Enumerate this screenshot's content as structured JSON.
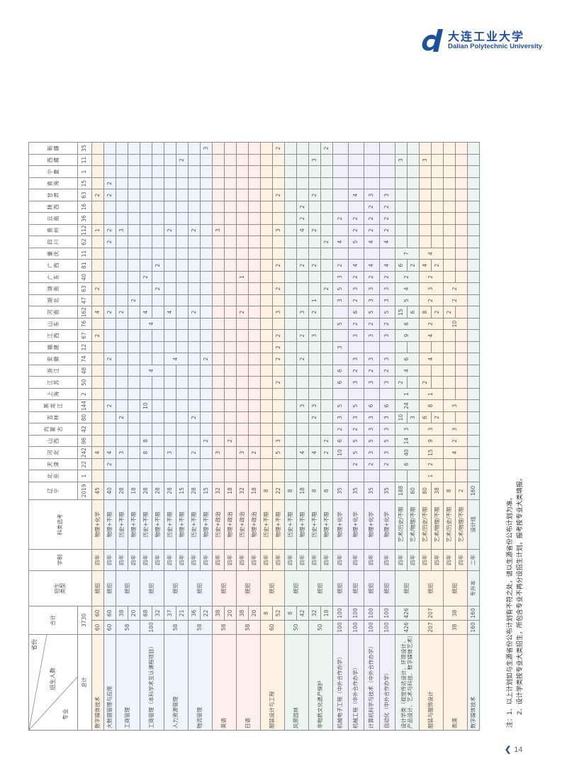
{
  "logo": {
    "cn": "大连工业大学",
    "en": "Dalian Polytechnic  University",
    "color": "#1d4fa3"
  },
  "table": {
    "header": {
      "province": "省份",
      "enroll": "招生人数",
      "major": "专业",
      "sum": "合计",
      "type": "招生类型",
      "duration": "学制",
      "subject": "科类选考",
      "total_label": "总计",
      "grand_total": "3730"
    },
    "provinces": [
      {
        "name": "辽宁",
        "total": "2019"
      },
      {
        "name": "北京",
        "total": "1"
      },
      {
        "name": "天津",
        "total": "22"
      },
      {
        "name": "河北",
        "total": "242"
      },
      {
        "name": "山西",
        "total": "96"
      },
      {
        "name": "内蒙古",
        "total": "42"
      },
      {
        "name": "吉林",
        "total": "80"
      },
      {
        "name": "黑龙江",
        "total": "144"
      },
      {
        "name": "上海",
        "total": "2"
      },
      {
        "name": "江苏",
        "total": "50"
      },
      {
        "name": "浙江",
        "total": "48"
      },
      {
        "name": "安徽",
        "total": "74"
      },
      {
        "name": "福建",
        "total": "12"
      },
      {
        "name": "江西",
        "total": "67"
      },
      {
        "name": "山东",
        "total": "76"
      },
      {
        "name": "河南",
        "total": "162"
      },
      {
        "name": "湖北",
        "total": "47"
      },
      {
        "name": "湖南",
        "total": "63"
      },
      {
        "name": "广东",
        "total": "40"
      },
      {
        "name": "广西",
        "total": "81"
      },
      {
        "name": "重庆",
        "total": "11"
      },
      {
        "name": "四川",
        "total": "62"
      },
      {
        "name": "贵州",
        "total": "112"
      },
      {
        "name": "云南",
        "total": "36"
      },
      {
        "name": "陕西",
        "total": "16"
      },
      {
        "name": "甘肃",
        "total": "63"
      },
      {
        "name": "青海",
        "total": "15"
      },
      {
        "name": "宁夏",
        "total": "1"
      },
      {
        "name": "西藏",
        "total": "11"
      },
      {
        "name": "新疆",
        "total": "35"
      }
    ],
    "majors": [
      {
        "name": "数字媒体技术",
        "total": "60",
        "type": "统招",
        "bg": "#fdf2e4",
        "subs": [
          {
            "count": "60",
            "dur": "四年",
            "subj": "物理+化学",
            "p": {
              "辽宁": "45",
              "河北": "4",
              "江西": "2",
              "河南": "4",
              "湖南": "2",
              "贵州": "1",
              "甘肃": "2"
            }
          }
        ]
      },
      {
        "name": "大数据管理与应用",
        "total": "60",
        "type": "统招",
        "bg": "#edf5fb",
        "subs": [
          {
            "count": "60",
            "dur": "四年",
            "subj": "物理+不限",
            "p": {
              "辽宁": "40",
              "天津": "2",
              "河北": "4",
              "黑龙江": "2",
              "安徽": "2",
              "河南": "2",
              "四川": "2",
              "贵州": "2",
              "甘肃": "2",
              "青海": "2"
            }
          }
        ]
      },
      {
        "name": "工商管理",
        "total": "58",
        "type": "统招",
        "bg": "#edf5fb",
        "subs": [
          {
            "count": "38",
            "dur": "四年",
            "subj": "历史+不限",
            "p": {
              "辽宁": "28",
              "河北": "3",
              "吉林": "2",
              "河南": "2",
              "贵州": "3"
            }
          },
          {
            "count": "20",
            "dur": "四年",
            "subj": "物理+不限",
            "p": {
              "辽宁": "18",
              "湖北": "2"
            }
          }
        ]
      },
      {
        "name": "工商管理（本科学术互认课程项目）",
        "total": "100",
        "type": "统招",
        "bg": "#edf5fb",
        "shared": {
          "浙江": "4",
          "山东": "4"
        },
        "subs": [
          {
            "count": "68",
            "dur": "四年",
            "subj": "历史+不限",
            "p": {
              "辽宁": "28",
              "河北": "8",
              "山西": "8",
              "黑龙江": "10",
              "河南": "4",
              "广东": "2"
            }
          },
          {
            "count": "32",
            "dur": "四年",
            "subj": "物理+不限",
            "p": {
              "辽宁": "28",
              "湖南": "2",
              "广西": "2"
            }
          }
        ]
      },
      {
        "name": "人力资源管理",
        "total": "58",
        "type": "统招",
        "bg": "#edf5fb",
        "shared": {
          "安徽": "4"
        },
        "subs": [
          {
            "count": "37",
            "dur": "四年",
            "subj": "历史+不限",
            "p": {
              "辽宁": "28",
              "河北": "3",
              "河南": "4",
              "贵州": "2"
            }
          },
          {
            "count": "21",
            "dur": "四年",
            "subj": "物理+不限",
            "p": {
              "辽宁": "15",
              "西藏": "2"
            }
          }
        ]
      },
      {
        "name": "物流管理",
        "total": "58",
        "type": "统招",
        "bg": "#edf5fb",
        "subs": [
          {
            "count": "36",
            "dur": "四年",
            "subj": "历史+不限",
            "p": {
              "辽宁": "28",
              "河北": "2",
              "吉林": "2",
              "河南": "2",
              "贵州": "2"
            }
          },
          {
            "count": "22",
            "dur": "四年",
            "subj": "物理+不限",
            "p": {
              "辽宁": "15",
              "山西": "2",
              "安徽": "2",
              "新疆": "3"
            }
          }
        ]
      },
      {
        "name": "英语",
        "total": "58",
        "type": "统招",
        "bg": "#fcefec",
        "subs": [
          {
            "count": "38",
            "dur": "四年",
            "subj": "历史+政治",
            "p": {
              "辽宁": "32",
              "河北": "3",
              "贵州": "3"
            }
          },
          {
            "count": "20",
            "dur": "四年",
            "subj": "物理+政治",
            "p": {
              "辽宁": "18",
              "山西": "2"
            }
          }
        ]
      },
      {
        "name": "日语",
        "total": "58",
        "type": "统招",
        "bg": "#fcefec",
        "subs": [
          {
            "count": "38",
            "dur": "四年",
            "subj": "历史+政治",
            "p": {
              "辽宁": "32",
              "河北": "3",
              "河南": "2",
              "广东": "1"
            }
          },
          {
            "count": "20",
            "dur": "四年",
            "subj": "物理+政治",
            "p": {
              "辽宁": "18",
              "河北": "2"
            }
          }
        ]
      },
      {
        "name": "服装设计与工程",
        "total": "60",
        "type": "统招",
        "bg": "#fdf2e4",
        "subs": [
          {
            "count": "8",
            "dur": "四年",
            "subj": "历史+不限",
            "p": {
              "辽宁": "8"
            }
          },
          {
            "count": "52",
            "dur": "四年",
            "subj": "物理+不限",
            "p": {
              "辽宁": "22",
              "河北": "5",
              "山西": "3",
              "江苏": "2",
              "安徽": "2",
              "福建": "2",
              "江西": "2",
              "河南": "3",
              "湖南": "2",
              "广西": "2",
              "贵州": "3",
              "甘肃": "2",
              "新疆": "2"
            }
          }
        ]
      },
      {
        "name": "风景园林",
        "total": "50",
        "type": "统招",
        "bg": "#ecf5f0",
        "subs": [
          {
            "count": "8",
            "dur": "四年",
            "subj": "历史+不限",
            "p": {
              "辽宁": "8"
            }
          },
          {
            "count": "42",
            "dur": "四年",
            "subj": "物理+不限",
            "p": {
              "辽宁": "18",
              "河北": "4",
              "黑龙江": "3",
              "安徽": "2",
              "江西": "2",
              "河南": "3",
              "广西": "2",
              "贵州": "4",
              "云南": "2",
              "陕西": "2"
            }
          }
        ]
      },
      {
        "name": "非物质文化遗产保护",
        "total": "50",
        "type": "统招",
        "bg": "#ecf5f0",
        "subs": [
          {
            "count": "32",
            "dur": "四年",
            "subj": "历史+不限",
            "p": {
              "辽宁": "8",
              "河北": "4",
              "吉林": "2",
              "黑龙江": "3",
              "江西": "3",
              "河南": "2",
              "湖北": "1",
              "广西": "2",
              "贵州": "2",
              "甘肃": "2",
              "西藏": "3"
            }
          },
          {
            "count": "18",
            "dur": "四年",
            "subj": "物理+不限",
            "p": {
              "辽宁": "8",
              "河北": "2",
              "山西": "2",
              "湖南": "2",
              "四川": "2",
              "新疆": "2"
            }
          }
        ]
      },
      {
        "name": "机械电子工程（中外合作办学）",
        "total": "100",
        "type": "统招",
        "bg": "#f1f0f8",
        "tall": true,
        "subs": [
          {
            "count": "100",
            "dur": "四年",
            "subj": "物理+化学",
            "p": {
              "辽宁": "35",
              "河北": "10",
              "山西": "6",
              "内蒙古": "2",
              "吉林": "3",
              "黑龙江": "5",
              "江苏": "6",
              "浙江": "6",
              "福建": "3",
              "山东": "5",
              "湖北": "3",
              "湖南": "5",
              "广东": "3",
              "广西": "2",
              "四川": "4",
              "云南": "2"
            }
          }
        ]
      },
      {
        "name": "机械工程（中外合作办学）",
        "total": "100",
        "type": "统招",
        "bg": "#f1f0f8",
        "tall": true,
        "subs": [
          {
            "count": "100",
            "dur": "四年",
            "subj": "物理+化学",
            "p": {
              "辽宁": "35",
              "天津": "2",
              "河北": "5",
              "山西": "5",
              "内蒙古": "2",
              "吉林": "3",
              "黑龙江": "5",
              "江苏": "3",
              "浙江": "2",
              "安徽": "3",
              "江西": "3",
              "山东": "2",
              "河南": "6",
              "湖北": "2",
              "湖南": "3",
              "广东": "2",
              "广西": "4",
              "四川": "5",
              "贵州": "2",
              "云南": "2",
              "甘肃": "4"
            }
          }
        ]
      },
      {
        "name": "计算机科学与技术（中外合作办学）",
        "total": "100",
        "type": "统招",
        "bg": "#f1f0f8",
        "tall": true,
        "subs": [
          {
            "count": "100",
            "dur": "四年",
            "subj": "物理+化学",
            "p": {
              "辽宁": "35",
              "天津": "2",
              "河北": "3",
              "山西": "5",
              "内蒙古": "3",
              "吉林": "3",
              "黑龙江": "6",
              "江苏": "3",
              "浙江": "2",
              "安徽": "3",
              "江西": "3",
              "山东": "2",
              "河南": "5",
              "湖北": "3",
              "湖南": "3",
              "广东": "2",
              "广西": "4",
              "四川": "4",
              "贵州": "2",
              "云南": "2",
              "陕西": "2",
              "甘肃": "3"
            }
          }
        ]
      },
      {
        "name": "自动化（中外合作办学）",
        "total": "100",
        "type": "统招",
        "bg": "#f1f0f8",
        "tall": true,
        "subs": [
          {
            "count": "100",
            "dur": "四年",
            "subj": "物理+化学",
            "p": {
              "辽宁": "35",
              "天津": "2",
              "河北": "3",
              "山西": "5",
              "内蒙古": "3",
              "吉林": "3",
              "黑龙江": "6",
              "江苏": "3",
              "浙江": "2",
              "安徽": "3",
              "江西": "3",
              "山东": "2",
              "河南": "5",
              "湖北": "3",
              "湖南": "3",
              "广东": "2",
              "广西": "4",
              "四川": "4",
              "贵州": "2",
              "云南": "2",
              "陕西": "2",
              "甘肃": "3"
            }
          }
        ]
      },
      {
        "name": "设计学类（视觉传达设计、环境设计、产品设计、艺术与科技、数字媒体艺术）",
        "total": "426",
        "count": "426",
        "type": "统招",
        "bg": "#ecf5f0",
        "shared": {
          "天津": "6",
          "河北": "40",
          "山西": "14",
          "内蒙古": "3",
          "黑龙江": "24",
          "上海": "1",
          "浙江": "4",
          "安徽": "6",
          "江西": "9",
          "山东": "6",
          "湖北": "5",
          "湖南": "4",
          "广东": "2",
          "重庆": "7"
        },
        "subs": [
          {
            "dur": "四年",
            "subj": "艺术/历史/不限",
            "p": {
              "辽宁": "188",
              "吉林": "10",
              "江苏": "2",
              "河南": "15",
              "广西": "6",
              "西藏": "3"
            }
          },
          {
            "dur": "四年",
            "subj": "艺术/物理/不限",
            "p": {
              "辽宁": "60",
              "吉林": "3",
              "河南": "6",
              "广西": "2"
            }
          }
        ]
      },
      {
        "name": "服装与服饰设计",
        "total": "207",
        "count": "207",
        "type": "统招",
        "bg": "#fdf2e4",
        "shared": {
          "北京": "1",
          "天津": "2",
          "河北": "15",
          "山西": "9",
          "内蒙古": "3",
          "黑龙江": "8",
          "上海": "1",
          "安徽": "4",
          "江西": "4",
          "山东": "2",
          "湖北": "2",
          "湖南": "3",
          "广东": "2",
          "重庆": "4"
        },
        "subs": [
          {
            "dur": "四年",
            "subj": "艺术/历史/不限",
            "p": {
              "辽宁": "80",
              "吉林": "6",
              "江苏": "2",
              "河南": "8",
              "广西": "4",
              "西藏": "3"
            }
          },
          {
            "dur": "四年",
            "subj": "艺术/物理/不限",
            "p": {
              "辽宁": "38",
              "吉林": "2",
              "河南": "2",
              "广西": "2"
            }
          }
        ]
      },
      {
        "name": "表演",
        "total": "38",
        "count": "38",
        "type": "统招",
        "bg": "#fdf2e4",
        "shared": {
          "河北": "4",
          "山西": "2",
          "内蒙古": "3",
          "黑龙江": "3",
          "山东": "10",
          "湖北": "2",
          "湖南": "2"
        },
        "subs": [
          {
            "dur": "四年",
            "subj": "艺术/历史/不限",
            "p": {
              "辽宁": "8",
              "河南": "2"
            }
          },
          {
            "dur": "四年",
            "subj": "艺术/物理/不限",
            "p": {
              "辽宁": "2"
            }
          }
        ]
      },
      {
        "name": "数字媒体技术",
        "total": "160",
        "type": "专升本",
        "bg": "#ecf5f0",
        "subs": [
          {
            "count": "160",
            "dur": "二年",
            "subj": "设计组",
            "p": {
              "辽宁": "160"
            }
          }
        ]
      }
    ]
  },
  "notes": [
    "注：1、以上计划如与生源省份公布计划有不符之处，请以生源省份公布计划为准。",
    "2、设计学类按专业大类招生，所包含专业不再分设招生计划，报考按专业大类填报。"
  ],
  "pager": {
    "page": "14",
    "icon": "chevron-left-icon"
  }
}
